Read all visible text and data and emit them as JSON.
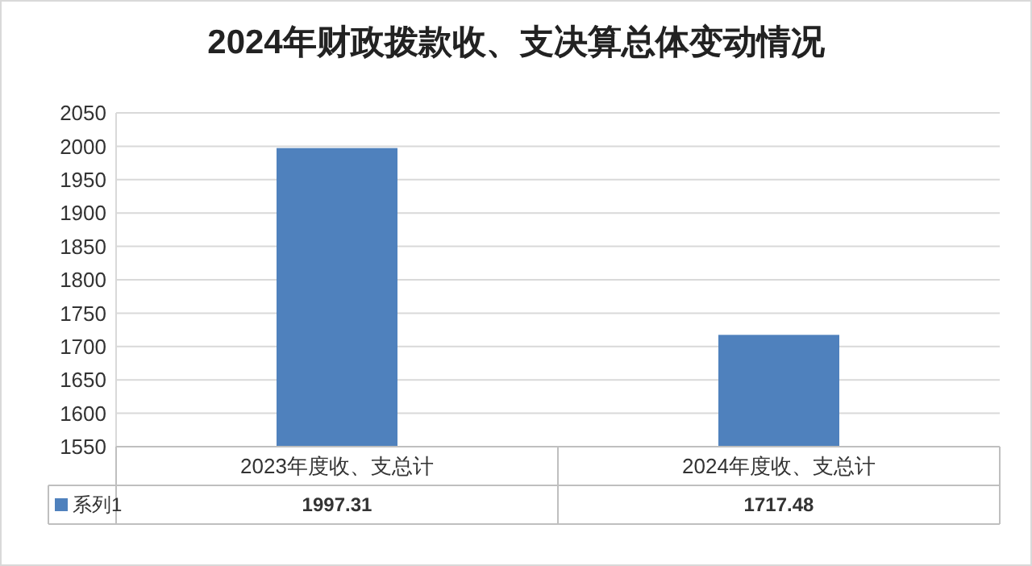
{
  "chart_data": {
    "type": "bar",
    "title": "2024年财政拨款收、支决算总体变动情况",
    "categories": [
      "2023年度收、支总计",
      "2024年度收、支总计"
    ],
    "series": [
      {
        "name": "系列1",
        "color": "#4f81bd",
        "values": [
          1997.31,
          1717.48
        ]
      }
    ],
    "ylim": [
      1550,
      2050
    ],
    "yticks": [
      1550,
      1600,
      1650,
      1700,
      1750,
      1800,
      1850,
      1900,
      1950,
      2000,
      2050
    ],
    "grid": "y",
    "legend": "bottom",
    "data_labels": true
  }
}
